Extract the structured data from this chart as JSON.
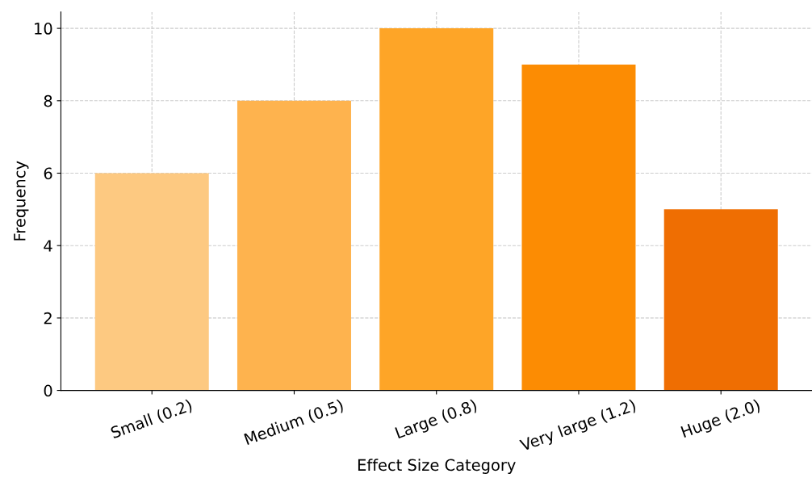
{
  "chart_data": {
    "type": "bar",
    "xlabel": "Effect Size Category",
    "ylabel": "Frequency",
    "categories": [
      "Small (0.2)",
      "Medium (0.5)",
      "Large (0.8)",
      "Very large (1.2)",
      "Huge (2.0)"
    ],
    "values": [
      6,
      8,
      10,
      9,
      5
    ],
    "colors": [
      "#fdc981",
      "#feb34e",
      "#fea527",
      "#fc8c03",
      "#ef6e02"
    ],
    "ylim": [
      0,
      10.45
    ],
    "yticks": [
      0,
      2,
      4,
      6,
      8,
      10
    ],
    "grid": true
  }
}
